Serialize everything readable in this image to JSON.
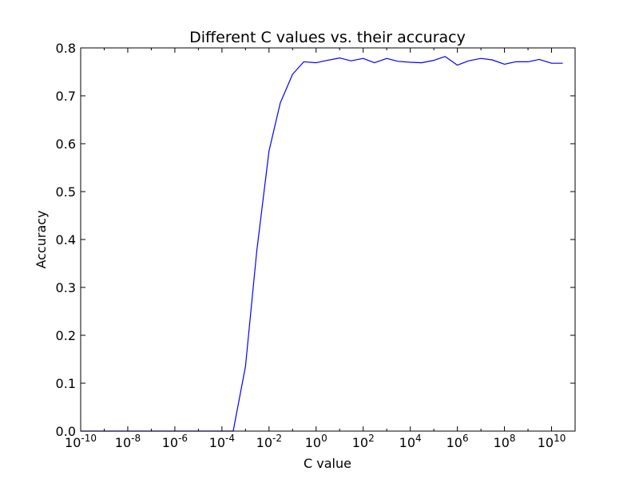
{
  "chart_data": {
    "type": "line",
    "title": "Different C values vs. their accuracy",
    "xlabel": "C value",
    "ylabel": "Accuracy",
    "x_scale": "log",
    "xlim": [
      1e-10,
      100000000000.0
    ],
    "ylim": [
      0.0,
      0.8
    ],
    "x_ticks": [
      {
        "value": 1e-10,
        "base": "10",
        "exp": "-10"
      },
      {
        "value": 1e-08,
        "base": "10",
        "exp": "-8"
      },
      {
        "value": 1e-06,
        "base": "10",
        "exp": "-6"
      },
      {
        "value": 0.0001,
        "base": "10",
        "exp": "-4"
      },
      {
        "value": 0.01,
        "base": "10",
        "exp": "-2"
      },
      {
        "value": 1.0,
        "base": "10",
        "exp": "0"
      },
      {
        "value": 100.0,
        "base": "10",
        "exp": "2"
      },
      {
        "value": 10000.0,
        "base": "10",
        "exp": "4"
      },
      {
        "value": 1000000.0,
        "base": "10",
        "exp": "6"
      },
      {
        "value": 100000000.0,
        "base": "10",
        "exp": "8"
      },
      {
        "value": 10000000000.0,
        "base": "10",
        "exp": "10"
      }
    ],
    "y_ticks": [
      {
        "value": 0.0,
        "label": "0.0"
      },
      {
        "value": 0.1,
        "label": "0.1"
      },
      {
        "value": 0.2,
        "label": "0.2"
      },
      {
        "value": 0.3,
        "label": "0.3"
      },
      {
        "value": 0.4,
        "label": "0.4"
      },
      {
        "value": 0.5,
        "label": "0.5"
      },
      {
        "value": 0.6,
        "label": "0.6"
      },
      {
        "value": 0.7,
        "label": "0.7"
      },
      {
        "value": 0.8,
        "label": "0.8"
      }
    ],
    "grid": false,
    "legend": "none",
    "series": [
      {
        "color": "#0000ff",
        "x": [
          1e-10,
          1e-09,
          1e-08,
          1e-07,
          1e-06,
          1e-05,
          0.0001,
          0.0003,
          0.001,
          0.003,
          0.01,
          0.03,
          0.1,
          0.3,
          1,
          3,
          10,
          30,
          100,
          300,
          1000,
          3000,
          10000.0,
          30000.0,
          100000.0,
          300000.0,
          1000000.0,
          3000000.0,
          10000000.0,
          30000000.0,
          100000000.0,
          300000000.0,
          1000000000.0,
          3000000000.0,
          10000000000.0,
          30000000000.0
        ],
        "y": [
          0.0,
          0.0,
          0.0,
          0.0,
          0.0,
          0.0,
          0.0,
          0.0,
          0.135,
          0.375,
          0.585,
          0.685,
          0.745,
          0.771,
          0.769,
          0.774,
          0.779,
          0.773,
          0.778,
          0.769,
          0.778,
          0.772,
          0.77,
          0.769,
          0.774,
          0.782,
          0.764,
          0.773,
          0.778,
          0.775,
          0.766,
          0.771,
          0.771,
          0.776,
          0.768,
          0.768
        ]
      }
    ]
  }
}
